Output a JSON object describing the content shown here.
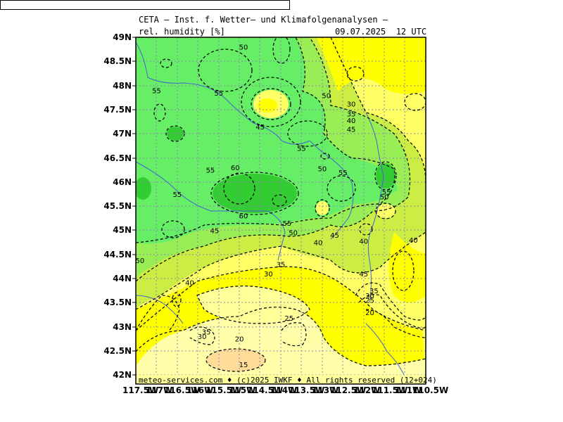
{
  "header": {
    "title": "CETA — Inst. f. Wetter— und Klimafolgenanalysen —",
    "parameter": "rel. humidity [%]",
    "valid_time": "09.07.2025  12 UTC"
  },
  "footer": {
    "credit": "meteo-services.com ♦ (c)2025 IWKF ♦ All rights reserved (12+024)"
  },
  "axes": {
    "lat_labels": [
      "49N",
      "48.5N",
      "48N",
      "47.5N",
      "47N",
      "46.5N",
      "46N",
      "45.5N",
      "45N",
      "44.5N",
      "44N",
      "43.5N",
      "43N",
      "42.5N",
      "42N"
    ],
    "lon_labels": [
      "117.5W",
      "117W",
      "116.5W",
      "116W",
      "115.5W",
      "115W",
      "114.5W",
      "114W",
      "113.5W",
      "113W",
      "112.5W",
      "112W",
      "111.5W",
      "111W",
      "110.5W"
    ]
  },
  "contour_labels": [
    {
      "text": "50",
      "lon": -114.9,
      "lat": 48.8
    },
    {
      "text": "55",
      "lon": -117.0,
      "lat": 47.9
    },
    {
      "text": "55",
      "lon": -115.5,
      "lat": 47.85
    },
    {
      "text": "50",
      "lon": -112.9,
      "lat": 47.8
    },
    {
      "text": "30",
      "lon": -112.3,
      "lat": 47.62
    },
    {
      "text": "35",
      "lon": -112.3,
      "lat": 47.42
    },
    {
      "text": "40",
      "lon": -112.3,
      "lat": 47.28
    },
    {
      "text": "45",
      "lon": -112.3,
      "lat": 47.1
    },
    {
      "text": "45",
      "lon": -114.5,
      "lat": 47.15
    },
    {
      "text": "55",
      "lon": -113.5,
      "lat": 46.7
    },
    {
      "text": "60",
      "lon": -115.1,
      "lat": 46.3
    },
    {
      "text": "55",
      "lon": -115.7,
      "lat": 46.25
    },
    {
      "text": "50",
      "lon": -113.0,
      "lat": 46.28
    },
    {
      "text": "55",
      "lon": -112.5,
      "lat": 46.2
    },
    {
      "text": "55",
      "lon": -111.45,
      "lat": 45.8
    },
    {
      "text": "50",
      "lon": -111.5,
      "lat": 45.7
    },
    {
      "text": "55",
      "lon": -116.5,
      "lat": 45.75
    },
    {
      "text": "60",
      "lon": -114.9,
      "lat": 45.3
    },
    {
      "text": "55",
      "lon": -113.85,
      "lat": 45.15
    },
    {
      "text": "50",
      "lon": -113.7,
      "lat": 44.95
    },
    {
      "text": "45",
      "lon": -115.6,
      "lat": 45.0
    },
    {
      "text": "45",
      "lon": -112.7,
      "lat": 44.9
    },
    {
      "text": "40",
      "lon": -113.1,
      "lat": 44.75
    },
    {
      "text": "40",
      "lon": -112.0,
      "lat": 44.78
    },
    {
      "text": "40",
      "lon": -110.8,
      "lat": 44.8
    },
    {
      "text": "50",
      "lon": -117.4,
      "lat": 44.38
    },
    {
      "text": "35",
      "lon": -114.0,
      "lat": 44.3
    },
    {
      "text": "30",
      "lon": -114.3,
      "lat": 44.1
    },
    {
      "text": "45",
      "lon": -112.0,
      "lat": 44.1
    },
    {
      "text": "40",
      "lon": -116.2,
      "lat": 43.92
    },
    {
      "text": "35",
      "lon": -111.75,
      "lat": 43.75
    },
    {
      "text": "30",
      "lon": -111.85,
      "lat": 43.65
    },
    {
      "text": "25",
      "lon": -111.85,
      "lat": 43.55
    },
    {
      "text": "20",
      "lon": -111.85,
      "lat": 43.3
    },
    {
      "text": "25",
      "lon": -113.8,
      "lat": 43.18
    },
    {
      "text": "35",
      "lon": -115.8,
      "lat": 42.9
    },
    {
      "text": "30",
      "lon": -115.9,
      "lat": 42.8
    },
    {
      "text": "20",
      "lon": -115.0,
      "lat": 42.75
    },
    {
      "text": "15",
      "lon": -114.9,
      "lat": 42.22
    }
  ],
  "colors": {
    "green_dark": "#33cc33",
    "green": "#66ee66",
    "green_light": "#99ee55",
    "yellow_green": "#ccee44",
    "yellow": "#ffff00",
    "yellow_light": "#ffff66",
    "pale": "#ffffaa",
    "peach": "#ffdd99",
    "grid": "#8888aa",
    "contour": "#000000",
    "river": "#4466cc"
  }
}
